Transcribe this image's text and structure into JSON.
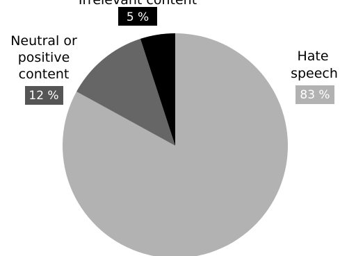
{
  "chart_data": {
    "type": "pie",
    "start": "12 o'clock",
    "direction": "clockwise",
    "slices": [
      {
        "label": [
          "Hate",
          "speech"
        ],
        "value_label": "83 %",
        "value": 83,
        "color": "#b2b2b2",
        "label_color": "#b2b2b2"
      },
      {
        "label": [
          "Neutral or",
          "positive",
          "content"
        ],
        "value_label": "12 %",
        "value": 12,
        "color": "#666666",
        "label_color": "#555555"
      },
      {
        "label": [
          "Irrelevant content"
        ],
        "value_label": "5 %",
        "value": 5,
        "color": "#000000",
        "label_color": "#000000"
      }
    ]
  }
}
